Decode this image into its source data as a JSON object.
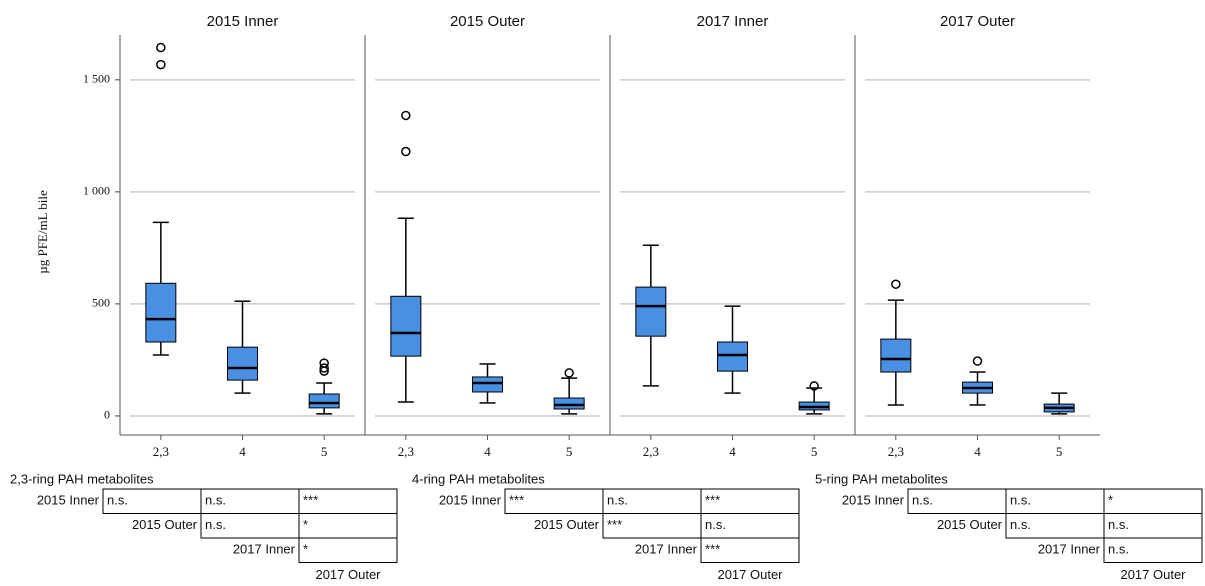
{
  "chart_data": {
    "type": "box",
    "ylabel": "µg PFE/mL bile",
    "color": "#4a90e2",
    "grid": true,
    "ylim": [
      -85,
      1700
    ],
    "yticks": [
      0,
      500,
      {
        "value": 1000,
        "label": "1 000"
      },
      {
        "value": 1500,
        "label": "1 500"
      }
    ],
    "panels": [
      {
        "title": "2015 Inner",
        "categories": [
          "2,3",
          "4",
          "5"
        ],
        "boxes": [
          {
            "whislo": 272,
            "q1": 330,
            "med": 432,
            "q3": 592,
            "whishi": 864,
            "fliers": [
              1568,
              1644
            ]
          },
          {
            "whislo": 102,
            "q1": 160,
            "med": 214,
            "q3": 307,
            "whishi": 512,
            "fliers": []
          },
          {
            "whislo": 9,
            "q1": 36,
            "med": 58,
            "q3": 98,
            "whishi": 147,
            "fliers": [
              200,
              214,
              236
            ]
          }
        ]
      },
      {
        "title": "2015 Outer",
        "categories": [
          "2,3",
          "4",
          "5"
        ],
        "boxes": [
          {
            "whislo": 62,
            "q1": 267,
            "med": 370,
            "q3": 534,
            "whishi": 882,
            "fliers": [
              1180,
              1341
            ]
          },
          {
            "whislo": 58,
            "q1": 107,
            "med": 147,
            "q3": 174,
            "whishi": 232,
            "fliers": []
          },
          {
            "whislo": 9,
            "q1": 31,
            "med": 49,
            "q3": 80,
            "whishi": 169,
            "fliers": [
              192
            ]
          }
        ]
      },
      {
        "title": "2017 Inner",
        "categories": [
          "2,3",
          "4",
          "5"
        ],
        "boxes": [
          {
            "whislo": 134,
            "q1": 356,
            "med": 490,
            "q3": 575,
            "whishi": 762,
            "fliers": []
          },
          {
            "whislo": 102,
            "q1": 200,
            "med": 272,
            "q3": 330,
            "whishi": 490,
            "fliers": []
          },
          {
            "whislo": 9,
            "q1": 27,
            "med": 40,
            "q3": 62,
            "whishi": 125,
            "fliers": [
              134
            ]
          }
        ]
      },
      {
        "title": "2017 Outer",
        "categories": [
          "2,3",
          "4",
          "5"
        ],
        "boxes": [
          {
            "whislo": 49,
            "q1": 196,
            "med": 254,
            "q3": 343,
            "whishi": 517,
            "fliers": [
              588
            ]
          },
          {
            "whislo": 49,
            "q1": 102,
            "med": 125,
            "q3": 151,
            "whishi": 196,
            "fliers": [
              245
            ]
          },
          {
            "whislo": 9,
            "q1": 18,
            "med": 36,
            "q3": 53,
            "whishi": 102,
            "fliers": []
          }
        ]
      }
    ]
  },
  "tables": [
    {
      "title": "2,3-ring PAH metabolites",
      "footer": "2017 Outer",
      "rows": [
        {
          "label": "2015 Inner",
          "cells": [
            "n.s.",
            "n.s.",
            "***"
          ]
        },
        {
          "label": "2015 Outer",
          "cells": [
            "n.s.",
            "*"
          ]
        },
        {
          "label": "2017 Inner",
          "cells": [
            "*"
          ]
        }
      ]
    },
    {
      "title": "4-ring PAH metabolites",
      "footer": "2017 Outer",
      "rows": [
        {
          "label": "2015 Inner",
          "cells": [
            "***",
            "n.s.",
            "***"
          ]
        },
        {
          "label": "2015 Outer",
          "cells": [
            "***",
            "n.s."
          ]
        },
        {
          "label": "2017 Inner",
          "cells": [
            "***"
          ]
        }
      ]
    },
    {
      "title": "5-ring PAH metabolites",
      "footer": "2017 Outer",
      "rows": [
        {
          "label": "2015 Inner",
          "cells": [
            "n.s.",
            "n.s.",
            "*"
          ]
        },
        {
          "label": "2015 Outer",
          "cells": [
            "n.s.",
            "n.s."
          ]
        },
        {
          "label": "2017 Inner",
          "cells": [
            "n.s."
          ]
        }
      ]
    }
  ]
}
